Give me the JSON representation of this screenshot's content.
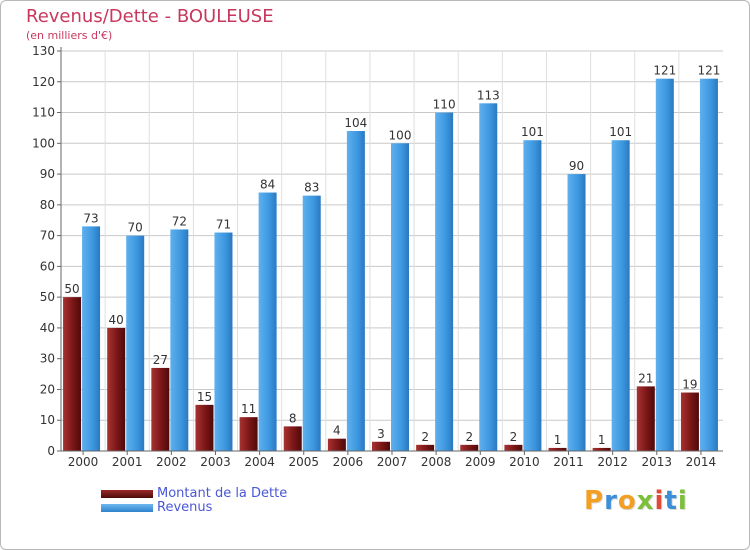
{
  "chart_data": {
    "type": "bar",
    "title": "Revenus/Dette - BOULEUSE",
    "subtitle": "(en milliers d'€)",
    "xlabel": "",
    "ylabel": "",
    "ylim": [
      0,
      130
    ],
    "ytick_step": 10,
    "grid": true,
    "categories": [
      "2000",
      "2001",
      "2002",
      "2003",
      "2004",
      "2005",
      "2006",
      "2007",
      "2008",
      "2009",
      "2010",
      "2011",
      "2012",
      "2013",
      "2014"
    ],
    "series": [
      {
        "name": "Montant de la Dette",
        "color": "#8a1b1b",
        "values": [
          50,
          40,
          27,
          15,
          11,
          8,
          4,
          3,
          2,
          2,
          2,
          1,
          1,
          21,
          19
        ]
      },
      {
        "name": "Revenus",
        "color": "#3f99e0",
        "values": [
          73,
          70,
          72,
          71,
          84,
          83,
          104,
          100,
          110,
          113,
          101,
          90,
          101,
          121,
          121
        ]
      }
    ],
    "legend": [
      {
        "label": "Montant de la Dette",
        "color": "#6e1515"
      },
      {
        "label": "Revenus",
        "color": "#3f99e0"
      }
    ]
  },
  "logo": {
    "text": "Proxiti",
    "letter_colors": [
      "#f2a024",
      "#3c8fd7",
      "#f2a024",
      "#7cbf3b",
      "#e24a36",
      "#3c8fd7",
      "#7cbf3b"
    ]
  }
}
